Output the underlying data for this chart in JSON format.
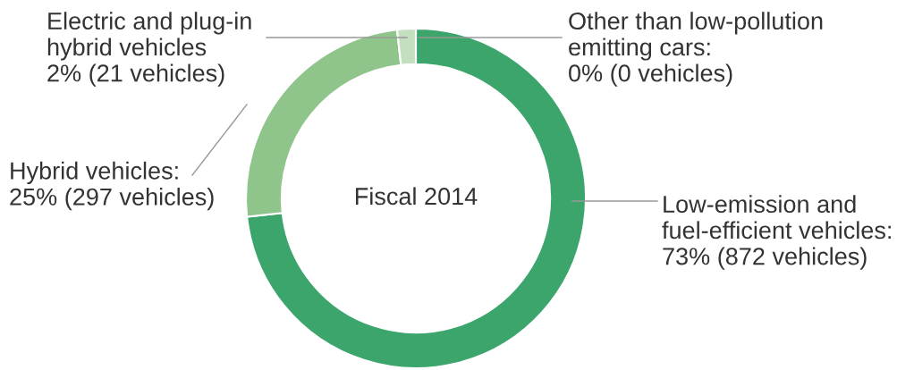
{
  "chart_data": {
    "type": "donut",
    "title": "Fiscal 2014",
    "categories": [
      "Low-emission and\nfuel-efficient vehicles:\n73% (872 vehicles)",
      "Hybrid vehicles:\n25% (297 vehicles)",
      "Electric and plug-in\nhybrid vehicles\n2% (21 vehicles)",
      "Other than low-pollution\nemitting cars:\n0% (0 vehicles)"
    ],
    "values": [
      872,
      297,
      21,
      0
    ],
    "colors": [
      "#3ca56c",
      "#8fc58b",
      "#c3dfc0",
      "#e6f2e4"
    ],
    "legend": false
  }
}
